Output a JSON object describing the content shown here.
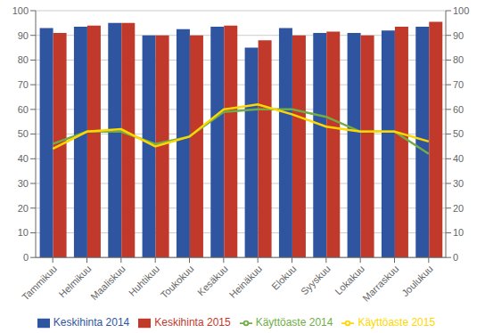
{
  "chart_data": {
    "type": "bar",
    "categories": [
      "Tammikuu",
      "Helmikuu",
      "Maaliskuu",
      "Huhtikuu",
      "Toukokuu",
      "Kesäkuu",
      "Heinäkuu",
      "Elokuu",
      "Syyskuu",
      "Lokakuu",
      "Marraskuu",
      "Joulukuu"
    ],
    "series": [
      {
        "name": "Keskihinta 2014",
        "type": "bar",
        "color": "#3055A0",
        "values": [
          93,
          93.5,
          95,
          90,
          92.5,
          93.5,
          85,
          93,
          91,
          91,
          92,
          93.5
        ]
      },
      {
        "name": "Keskihinta 2015",
        "type": "bar",
        "color": "#C0392B",
        "values": [
          91,
          94,
          95,
          90,
          90,
          94,
          88,
          90,
          91.5,
          90,
          93.5,
          95.5
        ]
      },
      {
        "name": "Käyttöaste 2014",
        "type": "line",
        "axis": "y2",
        "color": "#70AD47",
        "values": [
          46,
          51,
          51,
          46,
          49,
          59,
          60,
          60,
          57,
          51,
          51,
          42
        ]
      },
      {
        "name": "Käyttöaste 2015",
        "type": "line",
        "axis": "y2",
        "color": "#FFD700",
        "values": [
          44,
          51,
          52,
          45,
          49,
          60,
          62,
          58,
          53,
          51,
          51,
          47
        ]
      }
    ],
    "ylim": [
      0,
      100
    ],
    "yticks": [
      0,
      10,
      20,
      30,
      40,
      50,
      60,
      70,
      80,
      90,
      100
    ],
    "y2lim": [
      0,
      100
    ],
    "y2ticks": [
      0,
      10,
      20,
      30,
      40,
      50,
      60,
      70,
      80,
      90,
      100
    ],
    "grid": true,
    "legend": "bottom"
  }
}
